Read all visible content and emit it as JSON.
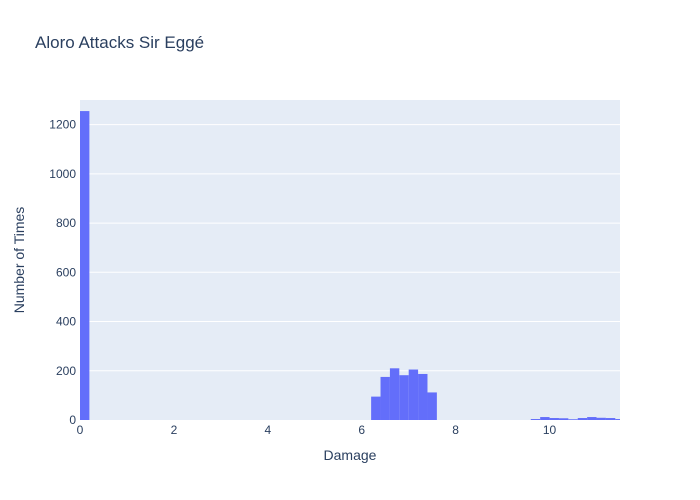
{
  "chart_data": {
    "type": "bar",
    "title": "Aloro Attacks Sir Eggé",
    "xlabel": "Damage",
    "ylabel": "Number of Times",
    "xlim": [
      0,
      11.5
    ],
    "ylim": [
      0,
      1300
    ],
    "bin_width": 0.2,
    "x_ticks": [
      0,
      2,
      4,
      6,
      8,
      10
    ],
    "y_ticks": [
      0,
      200,
      400,
      600,
      800,
      1000,
      1200
    ],
    "colors": {
      "bar": "#636efa",
      "plot_bg": "#e5ecf6",
      "grid": "#ffffff",
      "text": "#2a3f5f"
    },
    "grid": true,
    "series": [
      {
        "bins": [
          {
            "x0": 0.0,
            "count": 1255
          },
          {
            "x0": 6.2,
            "count": 95
          },
          {
            "x0": 6.4,
            "count": 175
          },
          {
            "x0": 6.6,
            "count": 210
          },
          {
            "x0": 6.8,
            "count": 182
          },
          {
            "x0": 7.0,
            "count": 205
          },
          {
            "x0": 7.2,
            "count": 187
          },
          {
            "x0": 7.4,
            "count": 112
          },
          {
            "x0": 9.6,
            "count": 4
          },
          {
            "x0": 9.8,
            "count": 12
          },
          {
            "x0": 10.0,
            "count": 8
          },
          {
            "x0": 10.2,
            "count": 7
          },
          {
            "x0": 10.4,
            "count": 3
          },
          {
            "x0": 10.6,
            "count": 8
          },
          {
            "x0": 10.8,
            "count": 12
          },
          {
            "x0": 11.0,
            "count": 9
          },
          {
            "x0": 11.2,
            "count": 8
          },
          {
            "x0": 11.4,
            "count": 4
          }
        ]
      }
    ]
  }
}
